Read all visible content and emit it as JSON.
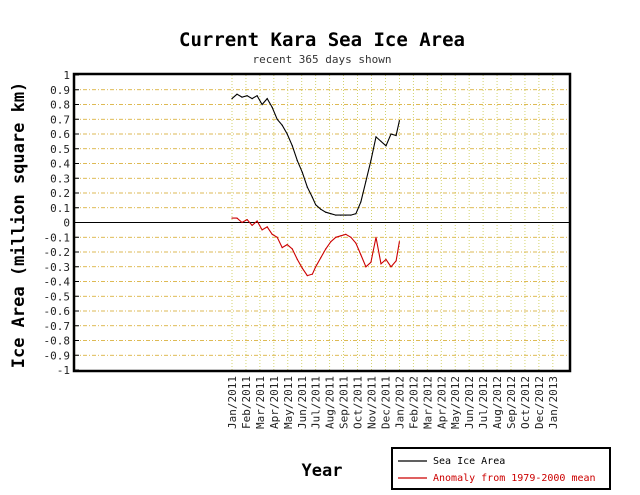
{
  "chart_data": {
    "type": "line",
    "title": "Current Kara Sea Ice Area",
    "subtitle": "recent 365 days shown",
    "xlabel": "Year",
    "ylabel": "Ice Area (million square km)",
    "ylim": [
      -1,
      1
    ],
    "yticks": [
      "1",
      "0.9",
      "0.8",
      "0.7",
      "0.6",
      "0.5",
      "0.4",
      "0.3",
      "0.2",
      "0.1",
      "0",
      "-0.1",
      "-0.2",
      "-0.3",
      "-0.4",
      "-0.5",
      "-0.6",
      "-0.7",
      "-0.8",
      "-0.9",
      "-1"
    ],
    "xticks": [
      "Jan/2011",
      "Feb/2011",
      "Mar/2011",
      "Apr/2011",
      "May/2011",
      "Jun/2011",
      "Jul/2011",
      "Aug/2011",
      "Sep/2011",
      "Oct/2011",
      "Nov/2011",
      "Dec/2011",
      "Jan/2012",
      "Feb/2012",
      "Mar/2012",
      "Apr/2012",
      "May/2012",
      "Jun/2012",
      "Jul/2012",
      "Aug/2012",
      "Sep/2012",
      "Oct/2012",
      "Dec/2012",
      "Jan/2013"
    ],
    "grid": true,
    "legend_position": "bottom-right",
    "series": [
      {
        "name": "Sea Ice Area",
        "color": "#000000",
        "x": [
          2011.0,
          2011.03,
          2011.06,
          2011.09,
          2011.12,
          2011.15,
          2011.18,
          2011.21,
          2011.24,
          2011.27,
          2011.3,
          2011.33,
          2011.36,
          2011.39,
          2011.42,
          2011.45,
          2011.48,
          2011.5,
          2011.53,
          2011.56,
          2011.59,
          2011.62,
          2011.65,
          2011.68,
          2011.71,
          2011.74,
          2011.77,
          2011.8,
          2011.83,
          2011.86,
          2011.89,
          2011.92,
          2011.95,
          2011.98,
          2012.0
        ],
        "values": [
          0.84,
          0.87,
          0.85,
          0.86,
          0.84,
          0.86,
          0.8,
          0.84,
          0.78,
          0.7,
          0.66,
          0.6,
          0.52,
          0.42,
          0.34,
          0.24,
          0.17,
          0.12,
          0.09,
          0.07,
          0.06,
          0.05,
          0.05,
          0.05,
          0.05,
          0.06,
          0.14,
          0.28,
          0.42,
          0.58,
          0.55,
          0.52,
          0.6,
          0.59,
          0.69
        ]
      },
      {
        "name": "Anomaly from 1979-2000 mean",
        "color": "#cc0000",
        "x": [
          2011.0,
          2011.03,
          2011.06,
          2011.09,
          2011.12,
          2011.15,
          2011.18,
          2011.21,
          2011.24,
          2011.27,
          2011.3,
          2011.33,
          2011.36,
          2011.39,
          2011.42,
          2011.45,
          2011.48,
          2011.5,
          2011.53,
          2011.56,
          2011.59,
          2011.62,
          2011.65,
          2011.68,
          2011.71,
          2011.74,
          2011.77,
          2011.8,
          2011.83,
          2011.86,
          2011.89,
          2011.92,
          2011.95,
          2011.98,
          2012.0
        ],
        "values": [
          0.03,
          0.03,
          0.0,
          0.02,
          -0.02,
          0.01,
          -0.05,
          -0.03,
          -0.08,
          -0.1,
          -0.17,
          -0.15,
          -0.18,
          -0.25,
          -0.31,
          -0.36,
          -0.35,
          -0.3,
          -0.24,
          -0.18,
          -0.13,
          -0.1,
          -0.09,
          -0.08,
          -0.1,
          -0.14,
          -0.22,
          -0.3,
          -0.27,
          -0.1,
          -0.28,
          -0.25,
          -0.3,
          -0.26,
          -0.13
        ]
      }
    ]
  }
}
